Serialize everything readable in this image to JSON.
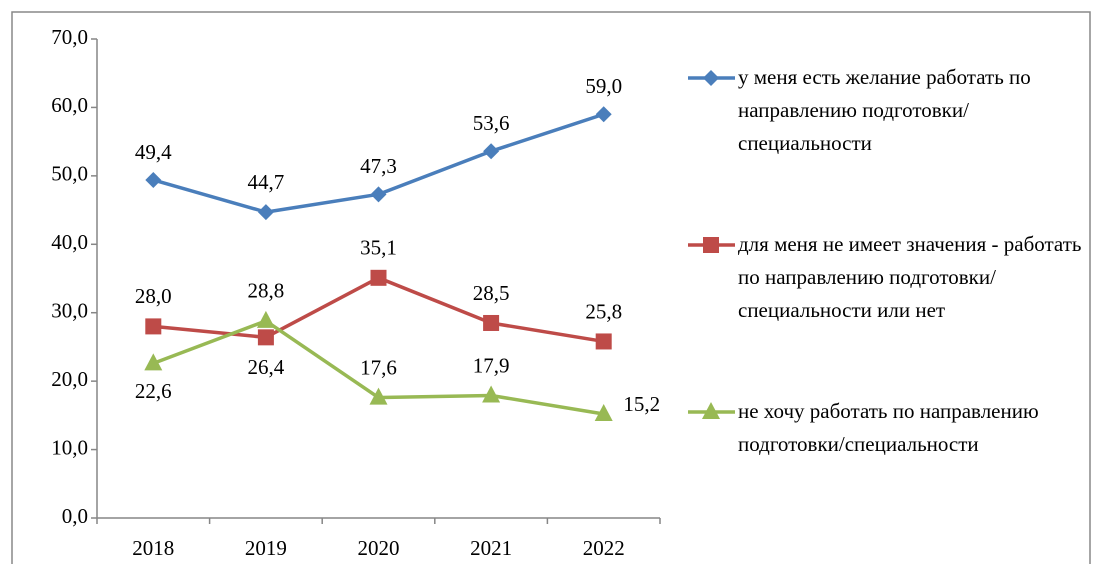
{
  "chart_data": {
    "type": "line",
    "categories": [
      "2018",
      "2019",
      "2020",
      "2021",
      "2022"
    ],
    "series": [
      {
        "name": "у меня есть желание работать по направлению подготовки/специальности",
        "color": "#4a7ebb",
        "marker": "diamond",
        "values": [
          49.4,
          44.7,
          47.3,
          53.6,
          59.0
        ],
        "value_labels": [
          "49,4",
          "44,7",
          "47,3",
          "53,6",
          "59,0"
        ]
      },
      {
        "name": "для меня не имеет значения - работать по направлению подготовки/специальности или нет",
        "color": "#be4b48",
        "marker": "square",
        "values": [
          28.0,
          26.4,
          35.1,
          28.5,
          25.8
        ],
        "value_labels": [
          "28,0",
          "26,4",
          "35,1",
          "28,5",
          "25,8"
        ]
      },
      {
        "name": "не хочу работать по направлению подготовки/специальности",
        "color": "#98b954",
        "marker": "triangle",
        "values": [
          22.6,
          28.8,
          17.6,
          17.9,
          15.2
        ],
        "value_labels": [
          "22,6",
          "28,8",
          "17,6",
          "17,9",
          "15,2"
        ]
      }
    ],
    "ylim": [
      0,
      70
    ],
    "yticks": [
      {
        "value": 0,
        "label": "0,0"
      },
      {
        "value": 10,
        "label": "10,0"
      },
      {
        "value": 20,
        "label": "20,0"
      },
      {
        "value": 30,
        "label": "30,0"
      },
      {
        "value": 40,
        "label": "40,0"
      },
      {
        "value": 50,
        "label": "50,0"
      },
      {
        "value": 60,
        "label": "60,0"
      },
      {
        "value": 70,
        "label": "70,0"
      }
    ],
    "grid": false,
    "legend": "right"
  }
}
